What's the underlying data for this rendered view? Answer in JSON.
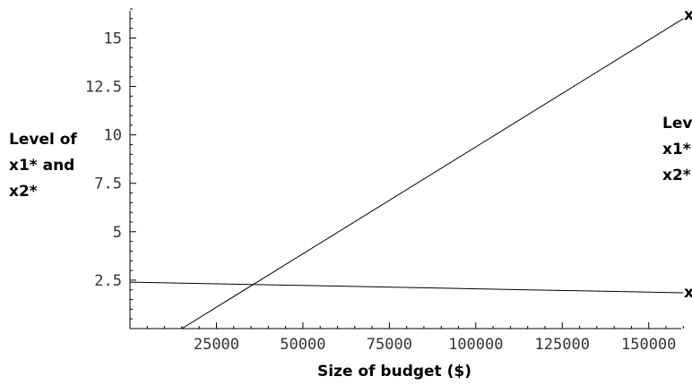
{
  "chart_data": {
    "type": "line",
    "xlabel": "Size of budget ($)",
    "ylabel_lines": [
      "Level of",
      "x1* and",
      "x2*"
    ],
    "right_label_lines": [
      "Lev",
      "x1*",
      "x2*"
    ],
    "xlim": [
      0,
      162000
    ],
    "ylim": [
      0,
      16.5
    ],
    "x_ticks": [
      25000,
      50000,
      75000,
      100000,
      125000,
      150000
    ],
    "y_ticks": [
      2.5,
      5,
      7.5,
      10,
      12.5,
      15
    ],
    "x_tick_labels": [
      "25000",
      "50000",
      "75000",
      "100000",
      "125000",
      "150000"
    ],
    "y_tick_labels": [
      "2.5",
      "5",
      "7.5",
      "10",
      "12.5",
      "15"
    ],
    "grid": false,
    "series": [
      {
        "name": "x",
        "x": [
          15000,
          160000
        ],
        "y": [
          0,
          16.0
        ]
      },
      {
        "name": "x",
        "x": [
          0,
          160000
        ],
        "y": [
          2.4,
          1.85
        ]
      }
    ]
  }
}
